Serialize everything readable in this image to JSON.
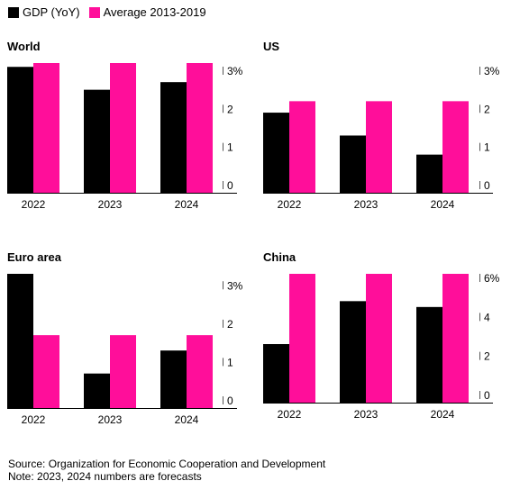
{
  "legend": [
    {
      "label": "GDP (YoY)",
      "color": "#000000"
    },
    {
      "label": "Average 2013-2019",
      "color": "#ff0e9a"
    }
  ],
  "footer": {
    "source": "Source: Organization for Economic Cooperation and Development",
    "note": "Note: 2023, 2024 numbers are forecasts"
  },
  "chart_data": [
    {
      "type": "bar",
      "title": "World",
      "categories": [
        "2022",
        "2023",
        "2024"
      ],
      "series": [
        {
          "name": "GDP (YoY)",
          "values": [
            3.3,
            2.7,
            2.9
          ]
        },
        {
          "name": "Average 2013-2019",
          "values": [
            3.4,
            3.4,
            3.4
          ]
        }
      ],
      "ylim": [
        0,
        3.4
      ],
      "yticks": [
        0,
        1,
        2,
        3
      ],
      "ytick_labels": [
        "0",
        "1",
        "2",
        "3%"
      ]
    },
    {
      "type": "bar",
      "title": "US",
      "categories": [
        "2022",
        "2023",
        "2024"
      ],
      "series": [
        {
          "name": "GDP (YoY)",
          "values": [
            2.1,
            1.5,
            1.0
          ]
        },
        {
          "name": "Average 2013-2019",
          "values": [
            2.4,
            2.4,
            2.4
          ]
        }
      ],
      "ylim": [
        0,
        3.4
      ],
      "yticks": [
        0,
        1,
        2,
        3
      ],
      "ytick_labels": [
        "0",
        "1",
        "2",
        "3%"
      ]
    },
    {
      "type": "bar",
      "title": "Euro area",
      "categories": [
        "2022",
        "2023",
        "2024"
      ],
      "series": [
        {
          "name": "GDP (YoY)",
          "values": [
            3.5,
            0.9,
            1.5
          ]
        },
        {
          "name": "Average 2013-2019",
          "values": [
            1.9,
            1.9,
            1.9
          ]
        }
      ],
      "ylim": [
        0,
        3.5
      ],
      "yticks": [
        0,
        1,
        2,
        3
      ],
      "ytick_labels": [
        "0",
        "1",
        "2",
        "3%"
      ]
    },
    {
      "type": "bar",
      "title": "China",
      "categories": [
        "2022",
        "2023",
        "2024"
      ],
      "series": [
        {
          "name": "GDP (YoY)",
          "values": [
            3.0,
            5.2,
            4.9
          ]
        },
        {
          "name": "Average 2013-2019",
          "values": [
            6.6,
            6.6,
            6.6
          ]
        }
      ],
      "ylim": [
        0,
        6.6
      ],
      "yticks": [
        0,
        2,
        4,
        6
      ],
      "ytick_labels": [
        "0",
        "2",
        "4",
        "6%"
      ]
    }
  ]
}
